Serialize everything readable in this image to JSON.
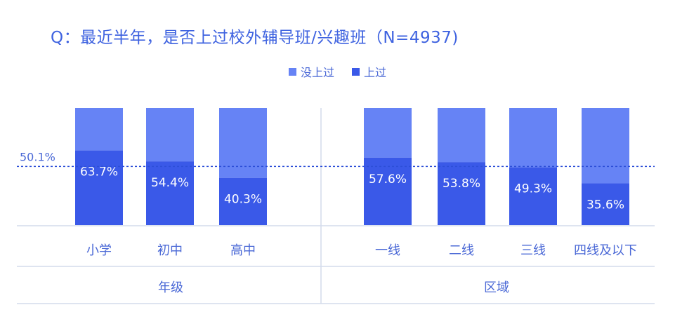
{
  "chart_data": {
    "type": "bar",
    "stacked": true,
    "title": "Q：最近半年，是否上过校外辅导班/兴趣班（N=4937)",
    "legend_position": "top-center",
    "groups": [
      {
        "label": "年级",
        "categories": [
          "小学",
          "初中",
          "高中"
        ]
      },
      {
        "label": "区域",
        "categories": [
          "一线",
          "二线",
          "三线",
          "四线及以下"
        ]
      }
    ],
    "categories": [
      "小学",
      "初中",
      "高中",
      "一线",
      "二线",
      "三线",
      "四线及以下"
    ],
    "series": [
      {
        "name": "上过",
        "color": "#3a59e8",
        "values": [
          63.7,
          54.4,
          40.3,
          57.6,
          53.8,
          49.3,
          35.6
        ]
      },
      {
        "name": "没上过",
        "color": "#6683f5",
        "values": [
          36.3,
          45.6,
          59.7,
          42.4,
          46.2,
          50.7,
          64.4
        ]
      }
    ],
    "value_labels": [
      "63.7%",
      "54.4%",
      "40.3%",
      "57.6%",
      "53.8%",
      "49.3%",
      "35.6%"
    ],
    "reference_line": {
      "value": 50.1,
      "label": "50.1%",
      "color": "#2d4fd8"
    },
    "ylim": [
      0,
      100
    ],
    "grid": false
  },
  "legend": [
    {
      "name": "没上过",
      "color": "#6683f5"
    },
    {
      "name": "上过",
      "color": "#3a59e8"
    }
  ],
  "colors": {
    "text": "#4a68d6",
    "title": "#3f63e0",
    "divider": "#d4dcec"
  }
}
